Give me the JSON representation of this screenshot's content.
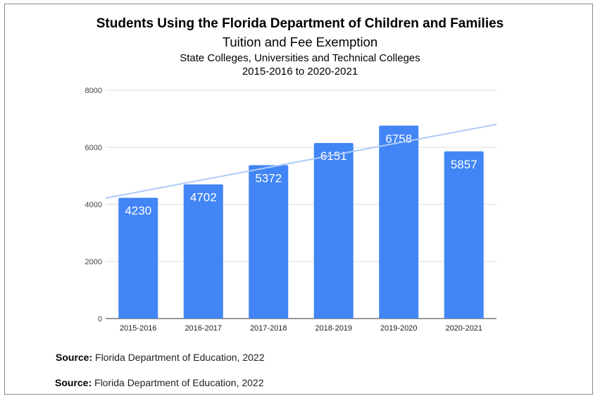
{
  "chart_data": {
    "type": "bar",
    "title": "Students Using the Florida Department of Children and Families",
    "subtitle": "Tuition and Fee Exemption",
    "subtitle2": "State Colleges, Universities and Technical Colleges",
    "subtitle3": "2015-2016 to 2020-2021",
    "categories": [
      "2015-2016",
      "2016-2017",
      "2017-2018",
      "2018-2019",
      "2019-2020",
      "2020-2021"
    ],
    "values": [
      4230,
      4702,
      5372,
      6151,
      6758,
      5857
    ],
    "ylim": [
      0,
      8000
    ],
    "yticks": [
      0,
      2000,
      4000,
      6000,
      8000
    ],
    "grid": true,
    "trendline": true,
    "bar_color": "#4285f4",
    "trend_color": "#aecbfa",
    "label_color": "#ffffff"
  },
  "sources": [
    {
      "label": "Source:",
      "text": " Florida Department of Education, 2022"
    },
    {
      "label": "Source:",
      "text": " Florida Department of Education, 2022"
    }
  ]
}
